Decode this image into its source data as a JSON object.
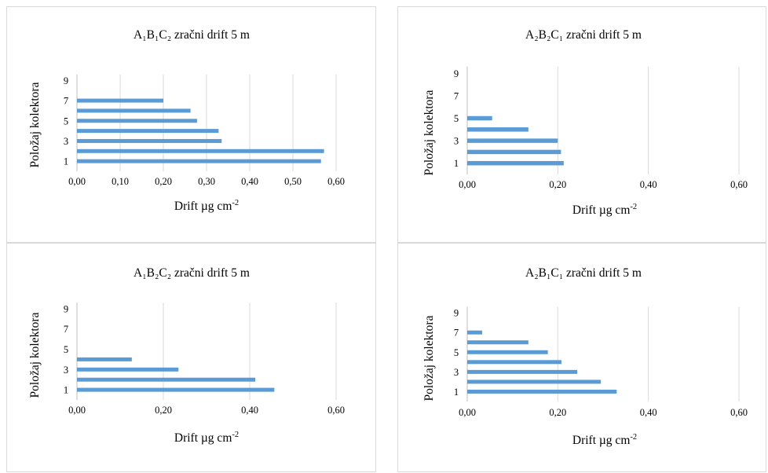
{
  "chart_data": [
    {
      "type": "bar",
      "orientation": "horizontal",
      "title": "A₁B₁C₂ zračni drift 5 m",
      "xlabel": "Drift µg cm",
      "xlabel_sup": "-2",
      "ylabel": "Položaj kolektora",
      "xlim": [
        0,
        0.6
      ],
      "xticks": [
        "0,00",
        "0,10",
        "0,20",
        "0,30",
        "0,40",
        "0,50",
        "0,60"
      ],
      "xtick_values": [
        0,
        0.1,
        0.2,
        0.3,
        0.4,
        0.5,
        0.6
      ],
      "yticks": [
        "1",
        "3",
        "5",
        "7",
        "9"
      ],
      "categories": [
        1,
        2,
        3,
        4,
        5,
        6,
        7
      ],
      "values": [
        0.565,
        0.572,
        0.335,
        0.328,
        0.278,
        0.263,
        0.2
      ],
      "bar_color": "#5b9bd5",
      "grid": "vertical"
    },
    {
      "type": "bar",
      "orientation": "horizontal",
      "title": "A₂B₂C₁ zračni drift 5 m",
      "xlabel": "Drift µg cm",
      "xlabel_sup": "-2",
      "ylabel": "Položaj kolektora",
      "xlim": [
        0,
        0.6
      ],
      "xticks": [
        "0,00",
        "0,20",
        "0,40",
        "0,60"
      ],
      "xtick_values": [
        0,
        0.2,
        0.4,
        0.6
      ],
      "yticks": [
        "1",
        "3",
        "5",
        "7",
        "9"
      ],
      "categories": [
        1,
        2,
        3,
        4,
        5
      ],
      "values": [
        0.213,
        0.207,
        0.2,
        0.135,
        0.055
      ],
      "bar_color": "#5b9bd5",
      "grid": "vertical"
    },
    {
      "type": "bar",
      "orientation": "horizontal",
      "title": "A₁B₂C₂ zračni drift 5 m",
      "xlabel": "Drift µg cm",
      "xlabel_sup": "-2",
      "ylabel": "Položaj kolektora",
      "xlim": [
        0,
        0.6
      ],
      "xticks": [
        "0,00",
        "0,20",
        "0,40",
        "0,60"
      ],
      "xtick_values": [
        0,
        0.2,
        0.4,
        0.6
      ],
      "yticks": [
        "1",
        "3",
        "5",
        "7",
        "9"
      ],
      "categories": [
        1,
        2,
        3,
        4
      ],
      "values": [
        0.457,
        0.413,
        0.235,
        0.127
      ],
      "bar_color": "#5b9bd5",
      "grid": "vertical"
    },
    {
      "type": "bar",
      "orientation": "horizontal",
      "title": "A₂B₁C₁ zračni drift 5 m",
      "xlabel": "Drift µg cm",
      "xlabel_sup": "-2",
      "ylabel": "Položaj kolektora",
      "xlim": [
        0,
        0.6
      ],
      "xticks": [
        "0,00",
        "0,20",
        "0,40",
        "0,60"
      ],
      "xtick_values": [
        0,
        0.2,
        0.4,
        0.6
      ],
      "yticks": [
        "1",
        "3",
        "5",
        "7",
        "9"
      ],
      "categories": [
        1,
        2,
        3,
        4,
        5,
        6,
        7
      ],
      "values": [
        0.33,
        0.295,
        0.243,
        0.208,
        0.178,
        0.135,
        0.033
      ],
      "bar_color": "#5b9bd5",
      "grid": "vertical"
    }
  ]
}
